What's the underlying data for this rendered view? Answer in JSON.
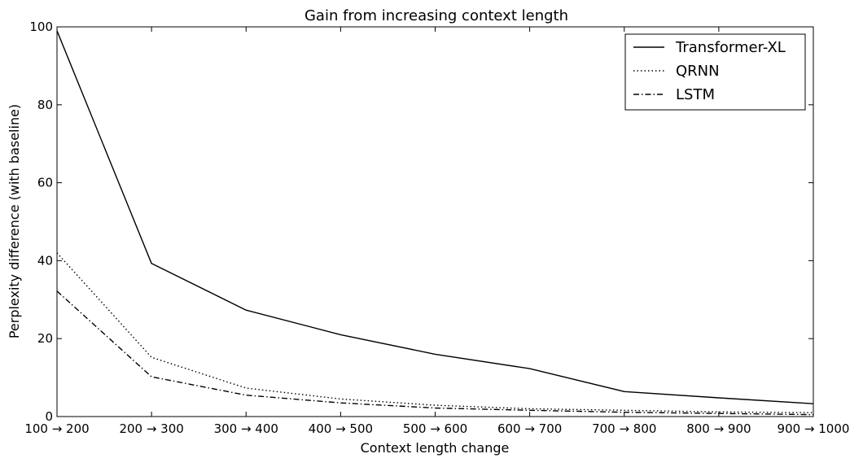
{
  "chart_data": {
    "type": "line",
    "title": "Gain from increasing context length",
    "xlabel": "Context length change",
    "ylabel": "Perplexity difference (with baseline)",
    "categories": [
      "100 → 200",
      "200 → 300",
      "300 → 400",
      "400 → 500",
      "500 → 600",
      "600 → 700",
      "700 → 800",
      "800 → 900",
      "900 → 1000"
    ],
    "ylim": [
      0,
      100
    ],
    "yticks": [
      0,
      20,
      40,
      60,
      80,
      100
    ],
    "grid": false,
    "legend_position": "top-right",
    "series": [
      {
        "name": "Transformer-XL",
        "style": "solid",
        "color": "#000000",
        "values": [
          99,
          39.3,
          27.3,
          21.0,
          16.0,
          12.3,
          6.4,
          4.8,
          3.3
        ]
      },
      {
        "name": "QRNN",
        "style": "dotted",
        "color": "#000000",
        "values": [
          42,
          15.2,
          7.3,
          4.5,
          2.9,
          2.0,
          1.6,
          1.2,
          1.0
        ]
      },
      {
        "name": "LSTM",
        "style": "dashdot",
        "color": "#000000",
        "values": [
          32.2,
          10.2,
          5.5,
          3.5,
          2.2,
          1.6,
          1.1,
          0.8,
          0.5
        ]
      }
    ]
  }
}
